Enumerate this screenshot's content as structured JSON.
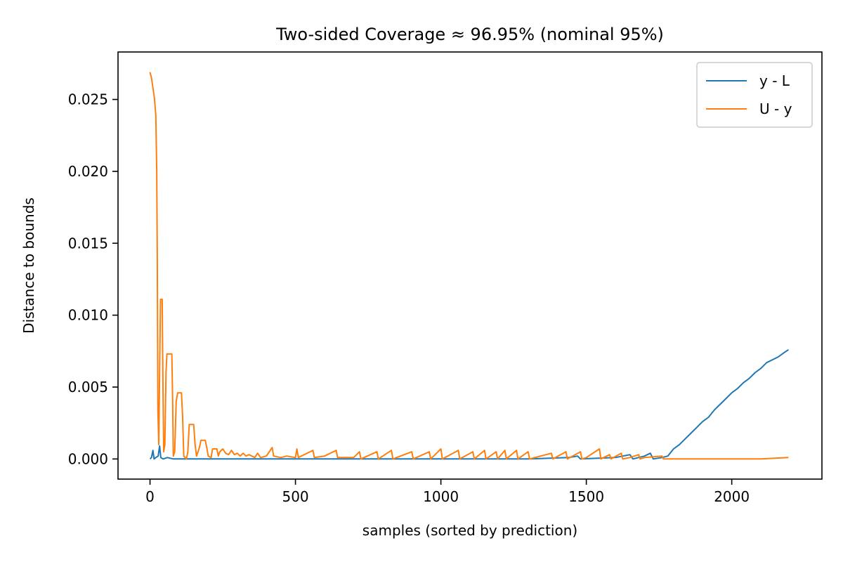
{
  "chart_data": {
    "type": "line",
    "title": "Two-sided Coverage ≈ 96.95% (nominal 95%)",
    "xlabel": "samples (sorted by prediction)",
    "ylabel": "Distance to bounds",
    "xlim": [
      -110,
      2310
    ],
    "ylim": [
      -0.0014,
      0.0283
    ],
    "xticks": [
      0,
      500,
      1000,
      1500,
      2000
    ],
    "xtick_labels": [
      "0",
      "500",
      "1000",
      "1500",
      "2000"
    ],
    "yticks": [
      0.0,
      0.005,
      0.01,
      0.015,
      0.02,
      0.025
    ],
    "ytick_labels": [
      "0.000",
      "0.005",
      "0.010",
      "0.015",
      "0.020",
      "0.025"
    ],
    "grid": false,
    "legend_position": "top-right",
    "series": [
      {
        "name": "y - L",
        "color": "#1f77b4",
        "points": [
          [
            0,
            0
          ],
          [
            5,
            0.0001
          ],
          [
            10,
            0.0006
          ],
          [
            14,
            0
          ],
          [
            20,
            0.0001
          ],
          [
            28,
            0.0002
          ],
          [
            33,
            0.0009
          ],
          [
            37,
            0.0001
          ],
          [
            45,
            0
          ],
          [
            60,
            0.0001
          ],
          [
            80,
            0
          ],
          [
            100,
            0
          ],
          [
            150,
            0
          ],
          [
            200,
            0
          ],
          [
            300,
            0
          ],
          [
            400,
            0
          ],
          [
            500,
            0
          ],
          [
            700,
            0
          ],
          [
            900,
            0
          ],
          [
            1100,
            0
          ],
          [
            1300,
            0
          ],
          [
            1440,
            0.0001
          ],
          [
            1470,
            0.0002
          ],
          [
            1480,
            0
          ],
          [
            1600,
            0.0001
          ],
          [
            1650,
            0.0003
          ],
          [
            1660,
            0
          ],
          [
            1700,
            0.0002
          ],
          [
            1720,
            0.0004
          ],
          [
            1730,
            0
          ],
          [
            1760,
            0.0001
          ],
          [
            1780,
            0.0002
          ],
          [
            1800,
            0.0007
          ],
          [
            1820,
            0.001
          ],
          [
            1840,
            0.0014
          ],
          [
            1860,
            0.0018
          ],
          [
            1880,
            0.0022
          ],
          [
            1900,
            0.0026
          ],
          [
            1920,
            0.0029
          ],
          [
            1940,
            0.0034
          ],
          [
            1960,
            0.0038
          ],
          [
            1980,
            0.0042
          ],
          [
            2000,
            0.0046
          ],
          [
            2020,
            0.0049
          ],
          [
            2040,
            0.0053
          ],
          [
            2060,
            0.0056
          ],
          [
            2080,
            0.006
          ],
          [
            2100,
            0.0063
          ],
          [
            2120,
            0.0067
          ],
          [
            2140,
            0.0069
          ],
          [
            2160,
            0.0071
          ],
          [
            2180,
            0.0074
          ],
          [
            2195,
            0.0076
          ]
        ]
      },
      {
        "name": "U - y",
        "color": "#ff7f0e",
        "points": [
          [
            0,
            0.0269
          ],
          [
            5,
            0.0265
          ],
          [
            10,
            0.0258
          ],
          [
            15,
            0.0251
          ],
          [
            20,
            0.0239
          ],
          [
            23,
            0.02
          ],
          [
            25,
            0.014
          ],
          [
            27,
            0.0035
          ],
          [
            30,
            0.001
          ],
          [
            33,
            0.006
          ],
          [
            36,
            0.0111
          ],
          [
            42,
            0.0111
          ],
          [
            44,
            0.006
          ],
          [
            47,
            0.0005
          ],
          [
            51,
            0.001
          ],
          [
            55,
            0.006
          ],
          [
            58,
            0.0073
          ],
          [
            75,
            0.0073
          ],
          [
            78,
            0.004
          ],
          [
            80,
            0.0002
          ],
          [
            85,
            0.0005
          ],
          [
            90,
            0.004
          ],
          [
            95,
            0.0046
          ],
          [
            108,
            0.0046
          ],
          [
            112,
            0.003
          ],
          [
            116,
            0.0002
          ],
          [
            125,
            0
          ],
          [
            130,
            0.0005
          ],
          [
            135,
            0.0024
          ],
          [
            150,
            0.0024
          ],
          [
            155,
            0.001
          ],
          [
            160,
            0.0002
          ],
          [
            170,
            0.0008
          ],
          [
            175,
            0.0013
          ],
          [
            190,
            0.0013
          ],
          [
            195,
            0.0008
          ],
          [
            200,
            0.0002
          ],
          [
            210,
            0.0001
          ],
          [
            215,
            0.0007
          ],
          [
            230,
            0.0007
          ],
          [
            235,
            0.0002
          ],
          [
            240,
            0.0005
          ],
          [
            250,
            0.0007
          ],
          [
            260,
            0.0004
          ],
          [
            270,
            0.0003
          ],
          [
            280,
            0.0006
          ],
          [
            290,
            0.0003
          ],
          [
            300,
            0.0004
          ],
          [
            310,
            0.0002
          ],
          [
            320,
            0.0004
          ],
          [
            330,
            0.0002
          ],
          [
            340,
            0.0003
          ],
          [
            360,
            0.0001
          ],
          [
            370,
            0.0004
          ],
          [
            380,
            0.0001
          ],
          [
            400,
            0.0002
          ],
          [
            420,
            0.0008
          ],
          [
            425,
            0.0002
          ],
          [
            450,
            0.0001
          ],
          [
            470,
            0.0002
          ],
          [
            500,
            0.0001
          ],
          [
            505,
            0.0007
          ],
          [
            510,
            0.0001
          ],
          [
            560,
            0.0006
          ],
          [
            565,
            0.0001
          ],
          [
            600,
            0.0002
          ],
          [
            640,
            0.0006
          ],
          [
            645,
            0.0001
          ],
          [
            700,
            0.0001
          ],
          [
            720,
            0.0005
          ],
          [
            725,
            0
          ],
          [
            780,
            0.0005
          ],
          [
            785,
            0
          ],
          [
            830,
            0.0006
          ],
          [
            835,
            0
          ],
          [
            900,
            0.0005
          ],
          [
            905,
            0
          ],
          [
            960,
            0.0005
          ],
          [
            965,
            0
          ],
          [
            1000,
            0.0007
          ],
          [
            1005,
            0
          ],
          [
            1060,
            0.0006
          ],
          [
            1065,
            0
          ],
          [
            1110,
            0.0005
          ],
          [
            1115,
            0
          ],
          [
            1150,
            0.0006
          ],
          [
            1155,
            0
          ],
          [
            1190,
            0.0005
          ],
          [
            1195,
            0
          ],
          [
            1220,
            0.0006
          ],
          [
            1225,
            0
          ],
          [
            1260,
            0.0006
          ],
          [
            1265,
            0
          ],
          [
            1300,
            0.0005
          ],
          [
            1305,
            0
          ],
          [
            1380,
            0.0004
          ],
          [
            1385,
            0
          ],
          [
            1430,
            0.0005
          ],
          [
            1435,
            0
          ],
          [
            1480,
            0.0005
          ],
          [
            1485,
            0
          ],
          [
            1500,
            0.0001
          ],
          [
            1545,
            0.0007
          ],
          [
            1550,
            0
          ],
          [
            1580,
            0.0003
          ],
          [
            1585,
            0
          ],
          [
            1620,
            0.0004
          ],
          [
            1625,
            0
          ],
          [
            1650,
            0.0001
          ],
          [
            1680,
            0.0003
          ],
          [
            1685,
            0
          ],
          [
            1700,
            0.0001
          ],
          [
            1760,
            0.0002
          ],
          [
            1765,
            0
          ],
          [
            1800,
            0
          ],
          [
            1900,
            0
          ],
          [
            2000,
            0
          ],
          [
            2100,
            0
          ],
          [
            2195,
            0.0001
          ]
        ]
      }
    ]
  }
}
